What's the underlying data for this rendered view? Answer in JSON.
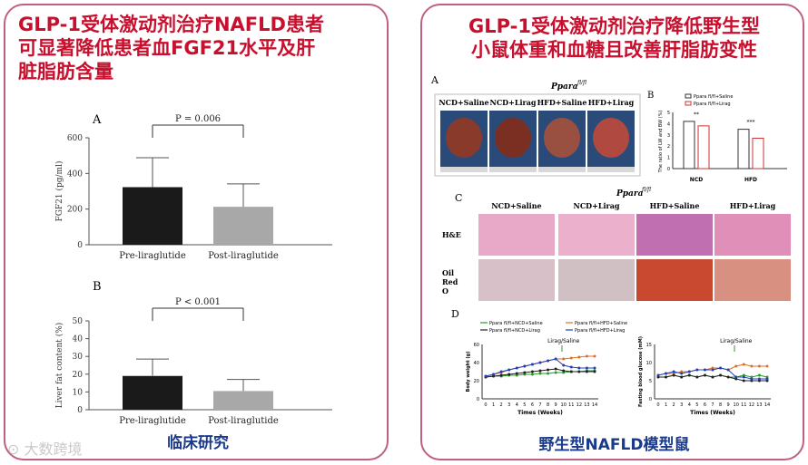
{
  "left": {
    "title_lines": [
      "GLP-1受体激动剂治疗NAFLD患者",
      "可显著降低患者血FGF21水平及肝",
      "脏脂肪含量"
    ],
    "caption": "临床研究",
    "chart_data": [
      {
        "type": "bar",
        "panel_label": "A",
        "categories": [
          "Pre-liraglutide",
          "Post-liraglutide"
        ],
        "values": [
          323,
          213
        ],
        "errors": [
          165,
          128
        ],
        "ylabel": "FGF21 (pg/ml)",
        "ylim": [
          0,
          600
        ],
        "yticks": [
          "0",
          "200",
          "400",
          "600"
        ],
        "annotation": "P = 0.006",
        "colors": [
          "#1a1a1a",
          "#a8a8a8"
        ]
      },
      {
        "type": "bar",
        "panel_label": "B",
        "categories": [
          "Pre-liraglutide",
          "Post-liraglutide"
        ],
        "values": [
          19,
          10.5
        ],
        "errors": [
          9.5,
          6.5
        ],
        "ylabel": "Liver fat content (%)",
        "ylim": [
          0,
          50
        ],
        "yticks": [
          "0",
          "10",
          "20",
          "30",
          "40",
          "50"
        ],
        "annotation": "P < 0.001",
        "colors": [
          "#1a1a1a",
          "#a8a8a8"
        ]
      }
    ]
  },
  "right": {
    "title_lines": [
      "GLP-1受体激动剂治疗降低野生型",
      "小鼠体重和血糖且改善肝脂肪变性"
    ],
    "caption": "野生型NAFLD模型鼠",
    "panel_a": {
      "label": "A",
      "genotype": "Ppara",
      "genotype_sup": "fl/fl",
      "groups": [
        "NCD+Saline",
        "NCD+Lirag",
        "HFD+Saline",
        "HFD+Lirag"
      ]
    },
    "panel_b": {
      "label": "B",
      "ylabel": "The ratio of LW and BW (%)",
      "legend": [
        "Ppara fl/fl+Saline",
        "Ppara fl/fl+Lirag"
      ],
      "categories": [
        "NCD",
        "HFD"
      ],
      "sig": [
        "**",
        "***"
      ],
      "chart_data": {
        "type": "bar",
        "categories": [
          "NCD",
          "HFD"
        ],
        "series": [
          {
            "name": "Ppara fl/fl+Saline",
            "values": [
              4.2,
              3.5
            ]
          },
          {
            "name": "Ppara fl/fl+Lirag",
            "values": [
              3.8,
              2.7
            ]
          }
        ],
        "ylim": [
          0,
          5
        ],
        "yticks": [
          "0",
          "1",
          "2",
          "3",
          "4",
          "5"
        ]
      }
    },
    "panel_c": {
      "label": "C",
      "genotype": "Ppara",
      "genotype_sup": "fl/fl",
      "groups": [
        "NCD+Saline",
        "NCD+Lirag",
        "HFD+Saline",
        "HFD+Lirag"
      ],
      "rows": [
        "H&E",
        "Oil",
        "Red",
        "O"
      ]
    },
    "panel_d": {
      "label": "D",
      "legend": [
        "Ppara fl/fl+NCD+Saline",
        "Ppara fl/fl+HFD+Saline",
        "Ppara fl/fl+NCD+Lirag",
        "Ppara fl/fl+HFD+Lirag"
      ],
      "annotation": "Lirag/Saline",
      "xlabel": "Times (Weeks)",
      "chart_data": [
        {
          "type": "line",
          "ylabel": "Body weight (g)",
          "ylim": [
            0,
            60
          ],
          "yticks": [
            "0",
            "20",
            "40",
            "60"
          ],
          "x": [
            0,
            1,
            2,
            3,
            4,
            5,
            6,
            7,
            8,
            9,
            10,
            11,
            12,
            13,
            14
          ],
          "series": [
            {
              "name": "Ppara fl/fl+NCD+Saline",
              "values": [
                24,
                25,
                25,
                26,
                26,
                27,
                27,
                28,
                28,
                29,
                29,
                30,
                30,
                31,
                31
              ]
            },
            {
              "name": "Ppara fl/fl+HFD+Saline",
              "values": [
                25,
                27,
                29,
                32,
                34,
                36,
                38,
                40,
                42,
                44,
                44,
                45,
                46,
                47,
                47
              ]
            },
            {
              "name": "Ppara fl/fl+NCD+Lirag",
              "values": [
                24,
                25,
                26,
                27,
                28,
                29,
                30,
                31,
                32,
                33,
                31,
                30,
                30,
                30,
                30
              ]
            },
            {
              "name": "Ppara fl/fl+HFD+Lirag",
              "values": [
                25,
                27,
                30,
                32,
                34,
                36,
                38,
                40,
                42,
                44,
                37,
                35,
                34,
                34,
                34
              ]
            }
          ]
        },
        {
          "type": "line",
          "ylabel": "Fasting blood glucose (mM)",
          "ylim": [
            0,
            15
          ],
          "yticks": [
            "0",
            "5",
            "10",
            "15"
          ],
          "x": [
            0,
            1,
            2,
            3,
            4,
            5,
            6,
            7,
            8,
            9,
            10,
            11,
            12,
            13,
            14
          ],
          "series": [
            {
              "name": "Ppara fl/fl+NCD+Saline",
              "values": [
                6,
                6,
                6.5,
                6,
                6.5,
                6,
                6.5,
                6,
                6.5,
                6,
                6,
                6.5,
                6,
                6.5,
                6
              ]
            },
            {
              "name": "Ppara fl/fl+HFD+Saline",
              "values": [
                6.5,
                7,
                7,
                7.5,
                7.5,
                8,
                8,
                8.5,
                8.5,
                8,
                9,
                9.5,
                9,
                9,
                9
              ]
            },
            {
              "name": "Ppara fl/fl+NCD+Lirag",
              "values": [
                6,
                6,
                6.5,
                6,
                6.5,
                6,
                6.5,
                6,
                6.5,
                6,
                5.5,
                5,
                5,
                5,
                5
              ]
            },
            {
              "name": "Ppara fl/fl+HFD+Lirag",
              "values": [
                6.5,
                7,
                7.5,
                7,
                7.5,
                8,
                8,
                8,
                8.5,
                8,
                6,
                6,
                5.5,
                5.5,
                5.5
              ]
            }
          ]
        }
      ]
    }
  },
  "watermark": "大数跨境",
  "colors": {
    "title": "#c8102e",
    "caption": "#1a3a8a",
    "border": "#c06080"
  }
}
